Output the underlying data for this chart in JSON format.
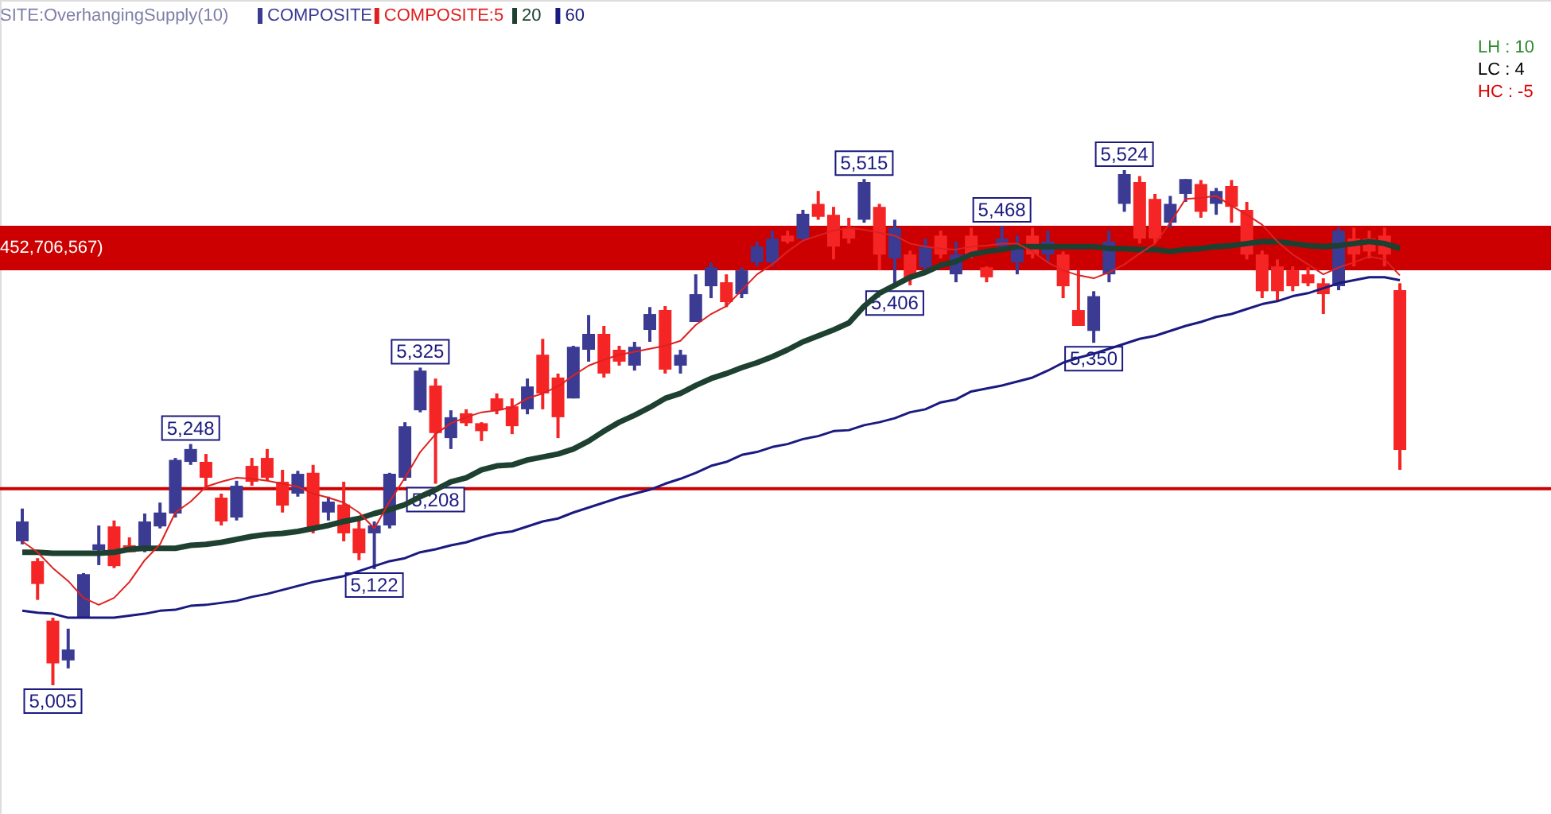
{
  "chart_data": {
    "type": "candlestick",
    "categories": [
      null,
      null,
      null,
      null,
      null,
      null,
      null,
      null,
      null,
      null,
      null,
      null,
      null,
      null,
      null,
      null,
      null,
      null,
      null,
      null,
      null,
      null,
      null,
      null,
      null,
      null,
      null,
      null,
      null,
      null,
      null,
      null,
      null,
      null,
      null,
      null,
      null,
      null,
      null,
      null,
      null,
      null,
      null,
      null,
      null,
      null,
      null,
      null,
      null,
      null,
      null,
      null,
      null,
      null,
      null,
      null,
      null,
      null,
      null,
      null,
      null,
      null,
      null,
      null,
      null,
      null,
      null,
      null,
      null,
      null,
      null,
      null,
      null,
      null,
      null,
      null,
      null,
      null,
      null,
      null,
      null,
      null,
      null,
      null,
      null,
      null,
      null,
      null,
      null,
      null,
      null
    ],
    "series": [
      {
        "name": "COMPOSITE",
        "type": "candlestick",
        "ohlc": [
          [
            5150,
            5183,
            5147,
            5170
          ],
          [
            5130,
            5133,
            5091,
            5107
          ],
          [
            5070,
            5073,
            5005,
            5027
          ],
          [
            5030,
            5062,
            5022,
            5041
          ],
          [
            5073,
            5118,
            5073,
            5117
          ],
          [
            5141,
            5166,
            5126,
            5147
          ],
          [
            5165,
            5171,
            5123,
            5125
          ],
          [
            5146,
            5154,
            5139,
            5139
          ],
          [
            5141,
            5178,
            5139,
            5170
          ],
          [
            5165,
            5189,
            5163,
            5179
          ],
          [
            5178,
            5234,
            5174,
            5232
          ],
          [
            5230,
            5248,
            5227,
            5243
          ],
          [
            5230,
            5238,
            5203,
            5214
          ],
          [
            5194,
            5198,
            5166,
            5170
          ],
          [
            5174,
            5211,
            5171,
            5206
          ],
          [
            5226,
            5234,
            5206,
            5210
          ],
          [
            5234,
            5243,
            5211,
            5214
          ],
          [
            5210,
            5222,
            5179,
            5186
          ],
          [
            5198,
            5221,
            5195,
            5218
          ],
          [
            5219,
            5227,
            5158,
            5162
          ],
          [
            5179,
            5195,
            5171,
            5190
          ],
          [
            5187,
            5210,
            5150,
            5158
          ],
          [
            5163,
            5171,
            5131,
            5138
          ],
          [
            5158,
            5170,
            5122,
            5166
          ],
          [
            5166,
            5219,
            5163,
            5218
          ],
          [
            5214,
            5270,
            5211,
            5266
          ],
          [
            5282,
            5325,
            5280,
            5322
          ],
          [
            5307,
            5314,
            5208,
            5259
          ],
          [
            5254,
            5282,
            5243,
            5275
          ],
          [
            5279,
            5283,
            5266,
            5269
          ],
          [
            5269,
            5270,
            5251,
            5261
          ],
          [
            5294,
            5299,
            5278,
            5282
          ],
          [
            5286,
            5294,
            5258,
            5266
          ],
          [
            5283,
            5314,
            5278,
            5306
          ],
          [
            5338,
            5354,
            5283,
            5299
          ],
          [
            5315,
            5319,
            5254,
            5275
          ],
          [
            5294,
            5347,
            5294,
            5346
          ],
          [
            5343,
            5378,
            5331,
            5359
          ],
          [
            5359,
            5367,
            5315,
            5319
          ],
          [
            5343,
            5347,
            5327,
            5331
          ],
          [
            5327,
            5351,
            5322,
            5346
          ],
          [
            5363,
            5386,
            5351,
            5379
          ],
          [
            5383,
            5387,
            5319,
            5323
          ],
          [
            5327,
            5343,
            5319,
            5338
          ],
          [
            5371,
            5419,
            5371,
            5399
          ],
          [
            5407,
            5431,
            5395,
            5426
          ],
          [
            5411,
            5419,
            5386,
            5391
          ],
          [
            5399,
            5426,
            5395,
            5423
          ],
          [
            5431,
            5452,
            5427,
            5447
          ],
          [
            5431,
            5463,
            5427,
            5455
          ],
          [
            5458,
            5463,
            5450,
            5452
          ],
          [
            5455,
            5484,
            5452,
            5480
          ],
          [
            5490,
            5503,
            5474,
            5477
          ],
          [
            5479,
            5487,
            5434,
            5447
          ],
          [
            5466,
            5476,
            5450,
            5455
          ],
          [
            5474,
            5515,
            5471,
            5512
          ],
          [
            5487,
            5490,
            5423,
            5439
          ],
          [
            5435,
            5474,
            5406,
            5466
          ],
          [
            5439,
            5443,
            5408,
            5415
          ],
          [
            5426,
            5455,
            5419,
            5447
          ],
          [
            5458,
            5463,
            5435,
            5439
          ],
          [
            5419,
            5452,
            5411,
            5439
          ],
          [
            5458,
            5466,
            5435,
            5439
          ],
          [
            5426,
            5427,
            5411,
            5416
          ],
          [
            5447,
            5468,
            5443,
            5455
          ],
          [
            5431,
            5458,
            5419,
            5447
          ],
          [
            5458,
            5466,
            5435,
            5439
          ],
          [
            5439,
            5463,
            5431,
            5452
          ],
          [
            5439,
            5442,
            5395,
            5407
          ],
          [
            5383,
            5423,
            5367,
            5367
          ],
          [
            5362,
            5402,
            5350,
            5397
          ],
          [
            5419,
            5463,
            5411,
            5452
          ],
          [
            5490,
            5524,
            5482,
            5520
          ],
          [
            5512,
            5518,
            5450,
            5455
          ],
          [
            5495,
            5500,
            5450,
            5455
          ],
          [
            5471,
            5498,
            5466,
            5490
          ],
          [
            5500,
            5515,
            5492,
            5515
          ],
          [
            5510,
            5514,
            5476,
            5482
          ],
          [
            5490,
            5506,
            5479,
            5503
          ],
          [
            5508,
            5514,
            5471,
            5487
          ],
          [
            5484,
            5492,
            5434,
            5439
          ],
          [
            5439,
            5443,
            5395,
            5402
          ],
          [
            5427,
            5434,
            5391,
            5402
          ],
          [
            5423,
            5427,
            5402,
            5407
          ],
          [
            5419,
            5426,
            5407,
            5410
          ],
          [
            5410,
            5415,
            5379,
            5399
          ],
          [
            5407,
            5466,
            5403,
            5463
          ],
          [
            5455,
            5466,
            5427,
            5439
          ],
          [
            5455,
            5463,
            5435,
            5442
          ],
          [
            5458,
            5466,
            5427,
            5439
          ],
          [
            5403,
            5410,
            5222,
            5242
          ]
        ],
        "colors": [
          "#3b3b94",
          "#f52525",
          "#f52525",
          "#3b3b94",
          "#3b3b94",
          "#3b3b94",
          "#f52525",
          "#f52525",
          "#3b3b94",
          "#3b3b94",
          "#3b3b94",
          "#3b3b94",
          "#f52525",
          "#f52525",
          "#3b3b94",
          "#f52525",
          "#f52525",
          "#f52525",
          "#3b3b94",
          "#f52525",
          "#3b3b94",
          "#f52525",
          "#f52525",
          "#3b3b94",
          "#3b3b94",
          "#3b3b94",
          "#3b3b94",
          "#f52525",
          "#3b3b94",
          "#f52525",
          "#f52525",
          "#f52525",
          "#f52525",
          "#3b3b94",
          "#f52525",
          "#f52525",
          "#3b3b94",
          "#3b3b94",
          "#f52525",
          "#f52525",
          "#3b3b94",
          "#3b3b94",
          "#f52525",
          "#3b3b94",
          "#3b3b94",
          "#3b3b94",
          "#f52525",
          "#3b3b94",
          "#3b3b94",
          "#3b3b94",
          "#f52525",
          "#3b3b94",
          "#f52525",
          "#f52525",
          "#f52525",
          "#3b3b94",
          "#f52525",
          "#3b3b94",
          "#f52525",
          "#3b3b94",
          "#f52525",
          "#3b3b94",
          "#f52525",
          "#f52525",
          "#3b3b94",
          "#3b3b94",
          "#f52525",
          "#3b3b94",
          "#f52525",
          "#f52525",
          "#3b3b94",
          "#3b3b94",
          "#3b3b94",
          "#f52525",
          "#f52525",
          "#3b3b94",
          "#3b3b94",
          "#f52525",
          "#3b3b94",
          "#f52525",
          "#f52525",
          "#f52525",
          "#f52525",
          "#f52525",
          "#f52525",
          "#f52525",
          "#3b3b94",
          "#f52525",
          "#f52525",
          "#f52525",
          "#f52525"
        ],
        "value_labels": [
          null,
          null,
          "5,005",
          null,
          null,
          null,
          null,
          null,
          null,
          null,
          null,
          "5,248",
          null,
          null,
          null,
          null,
          null,
          null,
          null,
          null,
          null,
          null,
          null,
          "5,122",
          null,
          null,
          "5,325",
          "5,208",
          null,
          null,
          null,
          null,
          null,
          null,
          null,
          null,
          null,
          null,
          null,
          null,
          null,
          null,
          null,
          null,
          null,
          null,
          null,
          null,
          null,
          null,
          null,
          null,
          null,
          null,
          null,
          "5,515",
          null,
          "5,406",
          null,
          null,
          null,
          null,
          null,
          null,
          "5,468",
          null,
          null,
          null,
          null,
          null,
          "5,350",
          null,
          "5,524",
          null,
          null,
          null,
          null,
          null,
          null,
          null,
          null,
          null,
          null,
          null,
          null,
          null,
          null,
          null,
          null,
          null,
          null
        ]
      },
      {
        "name": "COMPOSITE:5",
        "type": "line",
        "color": "#e02020",
        "values": [
          5150,
          5139,
          5123,
          5110,
          5093,
          5086,
          5093,
          5109,
          5131,
          5147,
          5179,
          5190,
          5205,
          5210,
          5214,
          5213,
          5211,
          5208,
          5205,
          5198,
          5194,
          5189,
          5179,
          5163,
          5190,
          5214,
          5240,
          5258,
          5269,
          5275,
          5280,
          5282,
          5285,
          5294,
          5299,
          5306,
          5317,
          5327,
          5333,
          5338,
          5341,
          5344,
          5347,
          5352,
          5368,
          5379,
          5387,
          5403,
          5419,
          5429,
          5442,
          5453,
          5458,
          5463,
          5466,
          5464,
          5461,
          5458,
          5450,
          5447,
          5445,
          5444,
          5447,
          5448,
          5450,
          5450,
          5442,
          5431,
          5423,
          5418,
          5415,
          5421,
          5429,
          5440,
          5450,
          5471,
          5495,
          5496,
          5498,
          5488,
          5479,
          5469,
          5452,
          5439,
          5429,
          5419,
          5426,
          5431,
          5437,
          5434,
          5418
        ]
      },
      {
        "name": "20",
        "type": "line",
        "color": "#1d4030",
        "values": [
          5139,
          5139,
          5138,
          5138,
          5138,
          5138,
          5139,
          5142,
          5143,
          5143,
          5143,
          5146,
          5147,
          5149,
          5152,
          5155,
          5157,
          5158,
          5160,
          5163,
          5166,
          5170,
          5173,
          5178,
          5182,
          5187,
          5195,
          5202,
          5210,
          5214,
          5222,
          5226,
          5227,
          5232,
          5235,
          5238,
          5243,
          5251,
          5261,
          5270,
          5277,
          5285,
          5294,
          5299,
          5307,
          5314,
          5319,
          5325,
          5330,
          5336,
          5343,
          5351,
          5357,
          5363,
          5370,
          5387,
          5400,
          5408,
          5416,
          5421,
          5428,
          5432,
          5439,
          5442,
          5444,
          5447,
          5447,
          5447,
          5447,
          5447,
          5447,
          5445,
          5445,
          5444,
          5444,
          5442,
          5444,
          5445,
          5447,
          5448,
          5450,
          5452,
          5452,
          5450,
          5448,
          5447,
          5448,
          5450,
          5452,
          5450,
          5445
        ]
      },
      {
        "name": "60",
        "type": "line",
        "color": "#1a1a80",
        "values": [
          5080,
          5078,
          5077,
          5073,
          5073,
          5073,
          5073,
          5075,
          5077,
          5080,
          5081,
          5085,
          5086,
          5088,
          5090,
          5094,
          5097,
          5101,
          5105,
          5109,
          5112,
          5115,
          5120,
          5125,
          5130,
          5133,
          5139,
          5142,
          5146,
          5149,
          5154,
          5158,
          5160,
          5165,
          5170,
          5173,
          5179,
          5184,
          5189,
          5194,
          5198,
          5202,
          5208,
          5213,
          5219,
          5226,
          5230,
          5237,
          5240,
          5245,
          5248,
          5253,
          5256,
          5261,
          5262,
          5267,
          5270,
          5274,
          5280,
          5283,
          5290,
          5293,
          5301,
          5304,
          5307,
          5311,
          5315,
          5322,
          5330,
          5335,
          5339,
          5344,
          5349,
          5354,
          5357,
          5362,
          5367,
          5371,
          5376,
          5379,
          5384,
          5389,
          5392,
          5397,
          5400,
          5405,
          5410,
          5413,
          5416,
          5416,
          5413
        ]
      }
    ],
    "bands": [
      {
        "axis": "y",
        "from": 5423,
        "to": 5468,
        "label": "452,706,567)",
        "color": "#cc0000"
      }
    ],
    "ref_lines": [
      {
        "axis": "y",
        "value": 5203,
        "color": "#cc0000"
      }
    ],
    "annotations": [
      "SITE:OverhangingSupply(10)",
      "LH : 10",
      "LC : 4",
      "HC : -5"
    ],
    "legend": "top left",
    "tick_labels": false
  }
}
